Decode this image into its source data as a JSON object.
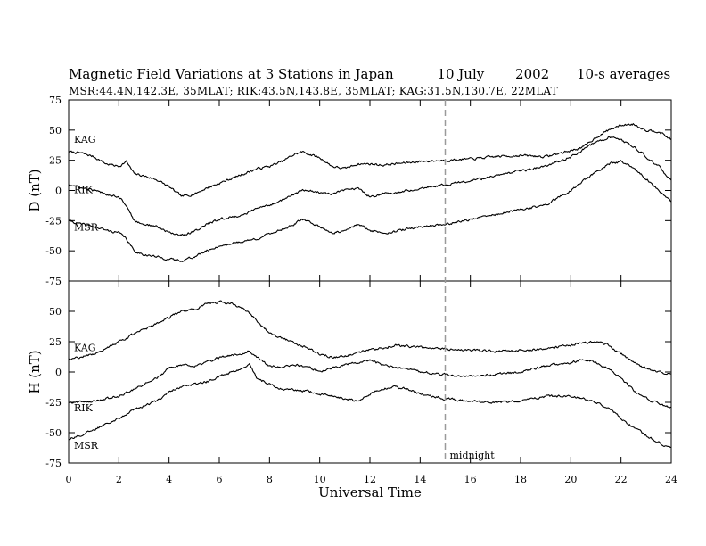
{
  "chart_data": {
    "type": "line",
    "title": {
      "main": "Magnetic Field Variations at 3 Stations in Japan",
      "day": "10 July",
      "year": "2002",
      "averaging": "10-s averages"
    },
    "subtitle": "MSR:44.4N,142.3E, 35MLAT;   RIK:43.5N,143.8E, 35MLAT;   KAG:31.5N,130.7E, 22MLAT",
    "xlabel": "Universal Time",
    "xlim": [
      0,
      24
    ],
    "xticks": [
      "0",
      "2",
      "4",
      "6",
      "8",
      "10",
      "12",
      "14",
      "16",
      "18",
      "20",
      "22",
      "24"
    ],
    "marker": {
      "x": 15,
      "label": "midnight"
    },
    "panels": [
      {
        "ylabel": "D (nT)",
        "ylim": [
          -75,
          75
        ],
        "yticks": [
          "75",
          "50",
          "25",
          "0",
          "-25",
          "-50",
          "-75"
        ],
        "series": [
          {
            "name": "KAG",
            "x": [
              0,
              0.5,
              1,
              1.5,
              2,
              2.3,
              2.6,
              3,
              3.5,
              4,
              4.5,
              5,
              5.5,
              6,
              6.5,
              7,
              7.5,
              8,
              8.5,
              9,
              9.3,
              9.6,
              10,
              10.5,
              11,
              11.5,
              12,
              12.5,
              13,
              13.5,
              14,
              15,
              16,
              17,
              18,
              19,
              20,
              20.5,
              21,
              21.5,
              22,
              22.5,
              23,
              23.5,
              24
            ],
            "y": [
              32,
              31,
              28,
              22,
              20,
              24,
              14,
              12,
              9,
              3,
              -5,
              -3,
              2,
              6,
              10,
              14,
              18,
              20,
              24,
              30,
              32,
              30,
              27,
              20,
              18,
              22,
              22,
              21,
              22,
              23,
              24,
              25,
              26,
              28,
              29,
              28,
              33,
              36,
              44,
              50,
              54,
              55,
              50,
              49,
              42
            ]
          },
          {
            "name": "RIK",
            "x": [
              0,
              0.5,
              1,
              1.5,
              2,
              2.3,
              2.6,
              3,
              3.5,
              4,
              4.5,
              5,
              5.5,
              6,
              6.5,
              7,
              7.5,
              8,
              8.5,
              9,
              9.3,
              9.6,
              10,
              10.5,
              11,
              11.5,
              12,
              12.5,
              13,
              13.5,
              14,
              15,
              16,
              17,
              18,
              19,
              20,
              20.5,
              21,
              21.5,
              22,
              22.5,
              23,
              23.5,
              24
            ],
            "y": [
              5,
              2,
              0,
              -3,
              -5,
              -12,
              -25,
              -28,
              -30,
              -35,
              -37,
              -34,
              -28,
              -24,
              -22,
              -20,
              -15,
              -12,
              -8,
              -3,
              0,
              0,
              -2,
              -3,
              0,
              2,
              -5,
              -3,
              -2,
              0,
              2,
              5,
              8,
              12,
              16,
              20,
              28,
              34,
              40,
              44,
              42,
              36,
              28,
              20,
              8
            ]
          },
          {
            "name": "MSR",
            "x": [
              0,
              0.5,
              1,
              1.5,
              2,
              2.3,
              2.6,
              3,
              3.5,
              4,
              4.5,
              5,
              5.5,
              6,
              6.5,
              7,
              7.5,
              8,
              8.5,
              9,
              9.3,
              9.6,
              10,
              10.5,
              11,
              11.5,
              12,
              12.5,
              13,
              13.5,
              14,
              15,
              16,
              17,
              18,
              19,
              20,
              20.5,
              21,
              21.5,
              22,
              22.5,
              23,
              23.5,
              24
            ],
            "y": [
              -25,
              -28,
              -30,
              -33,
              -35,
              -40,
              -50,
              -53,
              -55,
              -57,
              -58,
              -55,
              -50,
              -46,
              -44,
              -42,
              -40,
              -36,
              -32,
              -28,
              -24,
              -26,
              -30,
              -35,
              -34,
              -28,
              -33,
              -35,
              -34,
              -32,
              -30,
              -28,
              -24,
              -20,
              -16,
              -12,
              0,
              8,
              15,
              22,
              24,
              18,
              10,
              0,
              -10
            ]
          }
        ]
      },
      {
        "ylabel": "H (nT)",
        "ylim": [
          -75,
          75
        ],
        "yticks": [
          "",
          "50",
          "25",
          "0",
          "-25",
          "-50",
          "-75"
        ],
        "series": [
          {
            "name": "KAG",
            "x": [
              0,
              1,
              2,
              3,
              4,
              4.5,
              5,
              5.5,
              6,
              6.5,
              7,
              7.5,
              8,
              8.5,
              9,
              9.5,
              10,
              10.5,
              11,
              11.5,
              12,
              12.5,
              13,
              13.5,
              14,
              15,
              16,
              17,
              18,
              19,
              20,
              20.5,
              21,
              21.5,
              22,
              22.5,
              23,
              23.5,
              24
            ],
            "y": [
              10,
              15,
              25,
              35,
              45,
              50,
              52,
              56,
              58,
              56,
              52,
              42,
              32,
              28,
              24,
              20,
              15,
              12,
              13,
              16,
              18,
              20,
              22,
              21,
              20,
              19,
              18,
              17,
              18,
              19,
              22,
              24,
              25,
              22,
              15,
              8,
              3,
              0,
              -2
            ]
          },
          {
            "name": "RIK",
            "x": [
              0,
              1,
              2,
              2.5,
              3,
              3.5,
              4,
              4.5,
              5,
              5.5,
              6,
              6.5,
              7,
              7.2,
              7.5,
              8,
              8.5,
              9,
              9.5,
              10,
              10.5,
              11,
              11.5,
              12,
              12.5,
              13,
              13.5,
              14,
              15,
              16,
              17,
              18,
              19,
              20,
              20.5,
              21,
              21.5,
              22,
              22.5,
              23,
              23.5,
              24
            ],
            "y": [
              -25,
              -24,
              -20,
              -15,
              -10,
              -5,
              3,
              6,
              4,
              8,
              12,
              14,
              16,
              18,
              12,
              5,
              4,
              6,
              4,
              0,
              3,
              6,
              8,
              10,
              6,
              4,
              2,
              0,
              -2,
              -4,
              -2,
              0,
              5,
              8,
              10,
              8,
              3,
              -5,
              -15,
              -22,
              -26,
              -30
            ]
          },
          {
            "name": "MSR",
            "x": [
              0,
              0.5,
              1,
              1.5,
              2,
              2.5,
              3,
              3.5,
              4,
              4.5,
              5,
              5.5,
              6,
              6.5,
              7,
              7.2,
              7.5,
              8,
              8.5,
              9,
              9.5,
              10,
              10.5,
              11,
              11.5,
              12,
              12.5,
              13,
              13.5,
              14,
              15,
              16,
              17,
              18,
              19,
              20,
              20.5,
              21,
              21.5,
              22,
              22.5,
              23,
              23.5,
              24
            ],
            "y": [
              -55,
              -52,
              -48,
              -42,
              -38,
              -32,
              -28,
              -24,
              -16,
              -12,
              -10,
              -8,
              -4,
              0,
              3,
              6,
              -5,
              -10,
              -14,
              -15,
              -16,
              -18,
              -20,
              -22,
              -24,
              -18,
              -14,
              -12,
              -14,
              -18,
              -22,
              -24,
              -25,
              -24,
              -20,
              -20,
              -22,
              -25,
              -30,
              -38,
              -46,
              -52,
              -58,
              -63
            ]
          }
        ]
      }
    ]
  }
}
